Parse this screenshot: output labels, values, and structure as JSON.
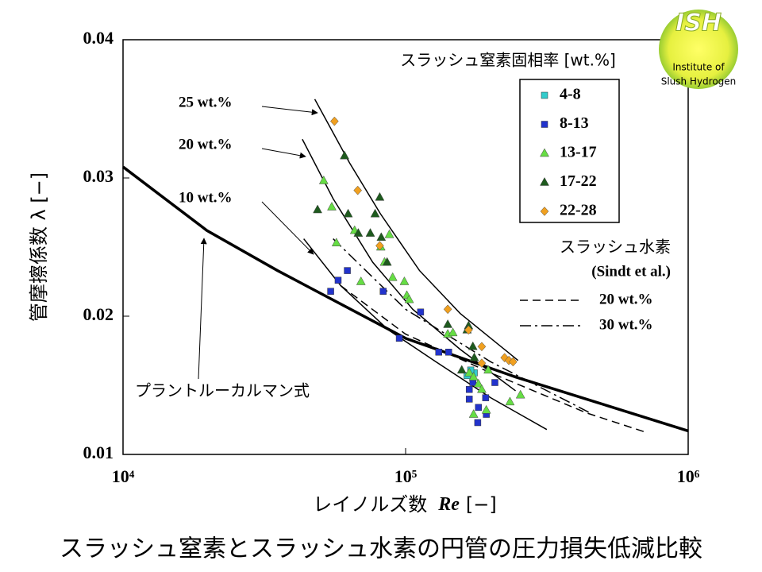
{
  "chart_data": {
    "type": "scatter",
    "x_label": "レイノルズ数",
    "x_label_var": "Re",
    "x_label_unit": "[−]",
    "y_label": "管摩擦係数 λ [−]",
    "log_x": true,
    "xlim": [
      10000,
      1000000
    ],
    "xticks": [
      {
        "value": 10000,
        "label": "10⁴"
      },
      {
        "value": 100000,
        "label": "10⁵"
      },
      {
        "value": 1000000,
        "label": "10⁶"
      }
    ],
    "ylim": [
      0.01,
      0.04
    ],
    "yticks": [
      0.01,
      0.02,
      0.03,
      0.04
    ],
    "legend_title": "スラッシュ窒素固相率  [wt.%]",
    "legend2_title": "スラッシュ水素",
    "legend2_subtitle": "(Sindt et al.)",
    "series": [
      {
        "name": "4-8",
        "color": "#33cccc",
        "marker": "square",
        "x": [
          165000,
          175000,
          170000
        ],
        "y": [
          0.0157,
          0.0159,
          0.0161
        ]
      },
      {
        "name": "8-13",
        "color": "#2233cc",
        "marker": "square",
        "x": [
          54300,
          57700,
          62200,
          83300,
          95000,
          113000,
          131000,
          142000,
          168000,
          168000,
          173000,
          181000,
          180000,
          192000,
          193000,
          207000
        ],
        "y": [
          0.0218,
          0.0226,
          0.0233,
          0.0218,
          0.0184,
          0.0203,
          0.0174,
          0.0174,
          0.0147,
          0.014,
          0.0152,
          0.0134,
          0.0123,
          0.0141,
          0.0129,
          0.0152
        ]
      },
      {
        "name": "13-17",
        "color": "#66dd44",
        "marker": "triangle",
        "x": [
          51300,
          54800,
          56900,
          66000,
          69500,
          81700,
          84200,
          87600,
          90000,
          99000,
          101000,
          103000,
          141000,
          147000,
          168000,
          174000,
          181000,
          186000,
          196000,
          174000,
          193000,
          234000,
          255000
        ],
        "y": [
          0.0298,
          0.0279,
          0.0253,
          0.0262,
          0.0225,
          0.025,
          0.0239,
          0.0259,
          0.0228,
          0.0225,
          0.0215,
          0.0212,
          0.0187,
          0.0188,
          0.0159,
          0.0156,
          0.0151,
          0.0147,
          0.0161,
          0.0129,
          0.0132,
          0.0138,
          0.0143
        ]
      },
      {
        "name": "17-22",
        "color": "#1e5a1e",
        "marker": "triangle",
        "x": [
          48800,
          60800,
          62600,
          68000,
          75000,
          78000,
          81000,
          82000,
          86000,
          141000,
          167000,
          165000,
          173000,
          175000,
          158000
        ],
        "y": [
          0.0277,
          0.0316,
          0.0274,
          0.026,
          0.026,
          0.0274,
          0.0286,
          0.0257,
          0.0239,
          0.0194,
          0.0193,
          0.019,
          0.0178,
          0.017,
          0.0161
        ]
      },
      {
        "name": "22-28",
        "color": "#f0a020",
        "marker": "diamond",
        "x": [
          56000,
          67700,
          81000,
          141000,
          167000,
          186000,
          186000,
          224000,
          232000,
          240000
        ],
        "y": [
          0.0341,
          0.0291,
          0.0251,
          0.0205,
          0.019,
          0.0178,
          0.0166,
          0.017,
          0.0168,
          0.0167
        ]
      }
    ],
    "lines": [
      {
        "label": "25 wt.%",
        "style": "solid",
        "width": 1.5,
        "x": [
          47700,
          63300,
          81500,
          112000,
          156000,
          250000
        ],
        "y": [
          0.0357,
          0.0311,
          0.0274,
          0.0233,
          0.0202,
          0.0168
        ]
      },
      {
        "label": "20 wt.%",
        "style": "solid",
        "width": 1.5,
        "x": [
          43100,
          55400,
          76500,
          106000,
          156000,
          245000
        ],
        "y": [
          0.0328,
          0.0285,
          0.0239,
          0.0205,
          0.0176,
          0.0146
        ]
      },
      {
        "label": "10 wt.%",
        "style": "solid",
        "width": 1.5,
        "x": [
          43600,
          59000,
          87000,
          128000,
          200000,
          316000
        ],
        "y": [
          0.0256,
          0.0222,
          0.019,
          0.0167,
          0.0141,
          0.0118
        ]
      },
      {
        "label": "プラントルーカルマン式",
        "style": "solid",
        "width": 3.5,
        "x": [
          10000,
          19800,
          35200,
          100000,
          245000,
          1000000
        ],
        "y": [
          0.0308,
          0.0262,
          0.0233,
          0.0184,
          0.0156,
          0.0117
        ]
      },
      {
        "name": "20 wt.%",
        "style": "dashed",
        "width": 1.5,
        "x": [
          59000,
          100000,
          200000,
          437000,
          709000
        ],
        "y": [
          0.0222,
          0.0187,
          0.0159,
          0.013,
          0.0116
        ]
      },
      {
        "name": "30 wt.%",
        "style": "dashdot",
        "width": 1.5,
        "x": [
          55400,
          100000,
          200000,
          450000
        ],
        "y": [
          0.0256,
          0.0205,
          0.0167,
          0.013
        ]
      }
    ]
  },
  "caption": "スラッシュ窒素とスラッシュ水素の円管の圧力損失低減比較",
  "logo": {
    "title": "ISH",
    "line1": "Institute of",
    "line2": "Slush Hydrogen"
  }
}
